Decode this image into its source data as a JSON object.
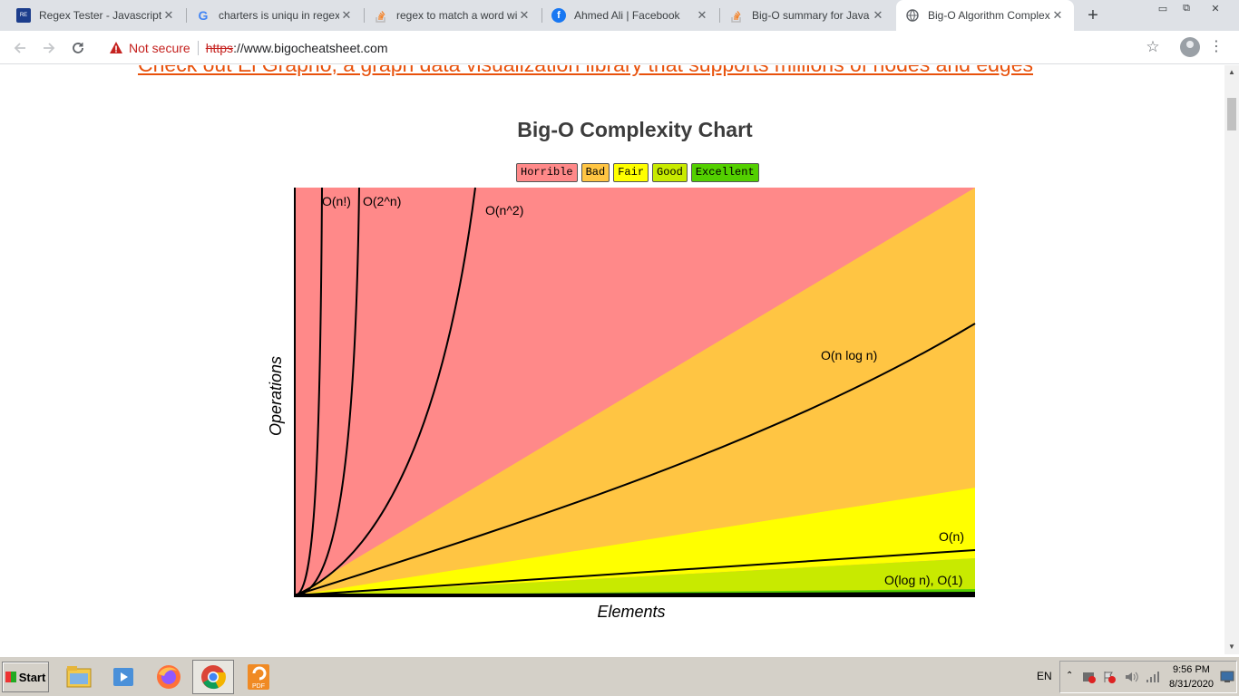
{
  "browser": {
    "tabs": [
      {
        "title": "Regex Tester - Javascript, ",
        "favicon": "regex-tester-icon",
        "active": false
      },
      {
        "title": "charters is uniqu in regex - ",
        "favicon": "google-icon",
        "active": false
      },
      {
        "title": "regex to match a word with",
        "favicon": "stackoverflow-icon",
        "active": false
      },
      {
        "title": "Ahmed Ali | Facebook",
        "favicon": "facebook-icon",
        "active": false
      },
      {
        "title": "Big-O summary for Java Co",
        "favicon": "stackoverflow-icon",
        "active": false
      },
      {
        "title": "Big-O Algorithm Complexity",
        "favicon": "globe-icon",
        "active": true
      }
    ],
    "omnibox": {
      "security_label": "Not secure",
      "url_scheme": "https",
      "url_rest": "://www.bigocheatsheet.com"
    }
  },
  "page": {
    "promo_link": "Check out El Grapho, a graph data visualization library that supports millions of nodes and edges",
    "chart_title": "Big-O Complexity Chart",
    "legend": [
      {
        "label": "Horrible",
        "color": "#ff8989"
      },
      {
        "label": "Bad",
        "color": "#ffc543"
      },
      {
        "label": "Fair",
        "color": "#ffff00"
      },
      {
        "label": "Good",
        "color": "#c8ea00"
      },
      {
        "label": "Excellent",
        "color": "#53d000"
      }
    ]
  },
  "chart_data": {
    "type": "area",
    "title": "Big-O Complexity Chart",
    "xlabel": "Elements",
    "ylabel": "Operations",
    "regions": [
      {
        "name": "Horrible",
        "color": "#ff8989"
      },
      {
        "name": "Bad",
        "color": "#ffc543"
      },
      {
        "name": "Fair",
        "color": "#ffff00"
      },
      {
        "name": "Good",
        "color": "#c8ea00"
      },
      {
        "name": "Excellent",
        "color": "#53d000"
      }
    ],
    "curves": [
      {
        "label": "O(n!)"
      },
      {
        "label": "O(2^n)"
      },
      {
        "label": "O(n^2)"
      },
      {
        "label": "O(n log n)"
      },
      {
        "label": "O(n)"
      },
      {
        "label": "O(log n), O(1)"
      }
    ]
  },
  "taskbar": {
    "start_label": "Start",
    "apps": [
      "file-explorer-icon",
      "media-player-icon",
      "firefox-icon",
      "chrome-icon",
      "pdf-reader-icon"
    ],
    "language": "EN",
    "time": "9:56 PM",
    "date": "8/31/2020"
  }
}
